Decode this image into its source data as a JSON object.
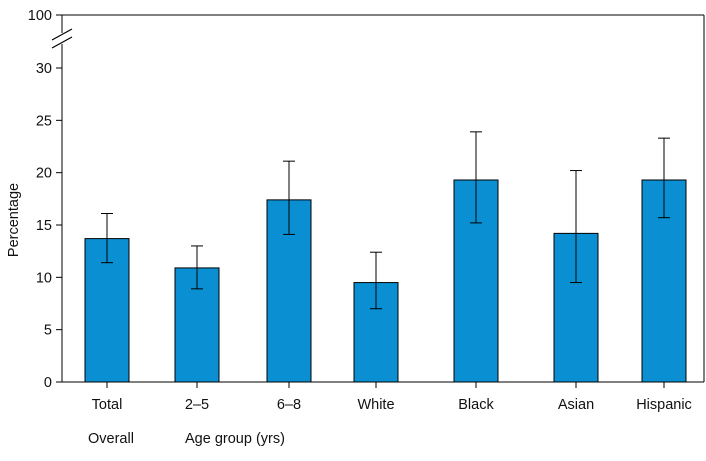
{
  "chart_data": {
    "type": "bar",
    "title": "",
    "xlabel": "",
    "ylabel": "Percentage",
    "ylim": [
      0,
      30
    ],
    "yticks": [
      0,
      5,
      10,
      15,
      20,
      25,
      30
    ],
    "y_axis_break": {
      "top_label": "100"
    },
    "grid": false,
    "legend": "none",
    "categories": [
      "Total",
      "2–5",
      "6–8",
      "White",
      "Black",
      "Asian",
      "Hispanic"
    ],
    "values": [
      13.7,
      10.9,
      17.4,
      9.5,
      19.3,
      14.2,
      19.3
    ],
    "error_low": [
      11.4,
      8.9,
      14.1,
      7.0,
      15.2,
      9.5,
      15.7
    ],
    "error_high": [
      16.1,
      13.0,
      21.1,
      12.4,
      23.9,
      20.2,
      23.3
    ],
    "group_labels": [
      "Overall",
      "Age group (yrs)"
    ],
    "bar_color": "#0a8fd2",
    "bar_edge_color": "#000000"
  }
}
